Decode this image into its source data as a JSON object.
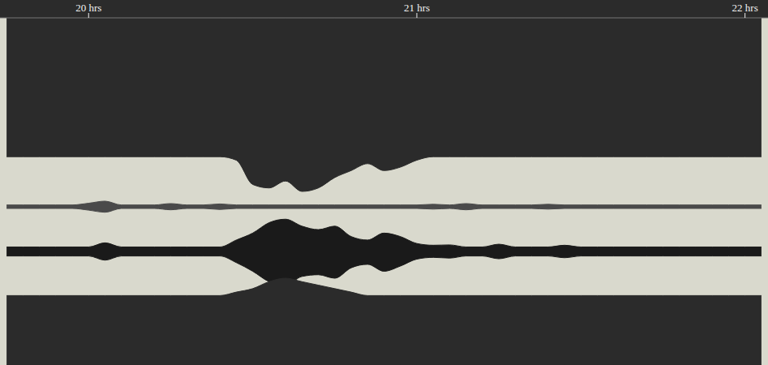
{
  "chart_data": {
    "type": "area",
    "tick_labels": "x",
    "grid": false,
    "xlim": [
      19.73,
      22.07
    ],
    "xticks": [
      {
        "value": 20,
        "label": "20 hrs"
      },
      {
        "value": 21,
        "label": "21 hrs"
      },
      {
        "value": 22,
        "label": "22 hrs"
      }
    ],
    "ylim": [
      0,
      100
    ],
    "x": [
      19.75,
      19.8,
      19.85,
      19.9,
      19.95,
      20,
      20.05,
      20.1,
      20.15,
      20.2,
      20.25,
      20.3,
      20.35,
      20.4,
      20.45,
      20.5,
      20.55,
      20.6,
      20.65,
      20.7,
      20.75,
      20.8,
      20.85,
      20.9,
      20.95,
      21,
      21.05,
      21.1,
      21.15,
      21.2,
      21.25,
      21.3,
      21.35,
      21.4,
      21.45,
      21.5,
      21.55,
      21.6,
      21.65,
      21.7,
      21.75,
      21.8,
      21.85,
      21.9,
      21.95,
      22,
      22.05
    ],
    "series": [
      {
        "color": "#2b2b2b",
        "upper": [
          100,
          100,
          100,
          100,
          100,
          100,
          100,
          100,
          100,
          100,
          100,
          100,
          100,
          100,
          100,
          100,
          100,
          100,
          100,
          100,
          100,
          100,
          100,
          100,
          100,
          100,
          100,
          100,
          100,
          100,
          100,
          100,
          100,
          100,
          100,
          100,
          100,
          100,
          100,
          100,
          100,
          100,
          100,
          100,
          100,
          100,
          100
        ],
        "lower": [
          60,
          60,
          60,
          60,
          60,
          60,
          60,
          60,
          60,
          60,
          60,
          60,
          60,
          60,
          59,
          52,
          51,
          53,
          50,
          51,
          54,
          56,
          58,
          56,
          57,
          59,
          60,
          60,
          60,
          60,
          60,
          60,
          60,
          60,
          60,
          60,
          60,
          60,
          60,
          60,
          60,
          60,
          60,
          60,
          60,
          60,
          60
        ]
      },
      {
        "color": "#4a4a4a",
        "upper": [
          46.1,
          46.1,
          46.1,
          46.1,
          46.1,
          46.6,
          47.2,
          46.1,
          46.1,
          46.1,
          46.5,
          46.1,
          46.1,
          46.4,
          46.1,
          46.1,
          46.1,
          46.1,
          46.1,
          46.1,
          46.1,
          46.1,
          46.1,
          46.1,
          46.1,
          46.1,
          46.3,
          46.1,
          46.5,
          46.1,
          46.1,
          46.1,
          46.1,
          46.3,
          46.1,
          46.1,
          46.1,
          46.1,
          46.1,
          46.1,
          46.1,
          46.1,
          46.1,
          46.1,
          46.1,
          46.1,
          46.1
        ],
        "lower": [
          45.1,
          45.1,
          45.1,
          45.1,
          45.1,
          44.6,
          44,
          45.1,
          45.1,
          45.1,
          44.7,
          45.1,
          45.1,
          44.8,
          45.1,
          45.1,
          45.1,
          45.1,
          45.1,
          45.1,
          45.1,
          45.1,
          45.1,
          45.1,
          45.1,
          45.1,
          44.9,
          45.1,
          44.7,
          45.1,
          45.1,
          45.1,
          45.1,
          44.9,
          45.1,
          45.1,
          45.1,
          45.1,
          45.1,
          45.1,
          45.1,
          45.1,
          45.1,
          45.1,
          45.1,
          45.1,
          45.1
        ]
      },
      {
        "color": "#1a1a1a",
        "upper": [
          34,
          34,
          34,
          34,
          34,
          34,
          35.2,
          34,
          34,
          34,
          34,
          34,
          34,
          34,
          36,
          38,
          41,
          42,
          40,
          39,
          40,
          37,
          36,
          38,
          37,
          35,
          34.5,
          34.6,
          34,
          34,
          34.8,
          34,
          34,
          34,
          34.5,
          34,
          34,
          34,
          34,
          34,
          34,
          34,
          34,
          34,
          34,
          34,
          34
        ],
        "lower": [
          31.4,
          31.4,
          31.4,
          31.4,
          31.4,
          31.4,
          30.2,
          31.4,
          31.4,
          31.4,
          31.4,
          31.4,
          31.4,
          31.4,
          29.5,
          27,
          24,
          23,
          25.5,
          26,
          25,
          28,
          29,
          27,
          28.5,
          30.5,
          31,
          30.8,
          31.4,
          31.4,
          30.6,
          31.4,
          31.4,
          31.4,
          30.9,
          31.4,
          31.4,
          31.4,
          31.4,
          31.4,
          31.4,
          31.4,
          31.4,
          31.4,
          31.4,
          31.4,
          31.4
        ]
      },
      {
        "color": "#2b2b2b",
        "upper": [
          20,
          20,
          20,
          20,
          20,
          20,
          20,
          20,
          20,
          20,
          20,
          20,
          20,
          20,
          21,
          22,
          24,
          25,
          24,
          23,
          22,
          21,
          20,
          20,
          20,
          20,
          20,
          20,
          20,
          20,
          20,
          20,
          20,
          20,
          20,
          20,
          20,
          20,
          20,
          20,
          20,
          20,
          20,
          20,
          20,
          20,
          20
        ],
        "lower": [
          0,
          0,
          0,
          0,
          0,
          0,
          0,
          0,
          0,
          0,
          0,
          0,
          0,
          0,
          0,
          0,
          0,
          0,
          0,
          0,
          0,
          0,
          0,
          0,
          0,
          0,
          0,
          0,
          0,
          0,
          0,
          0,
          0,
          0,
          0,
          0,
          0,
          0,
          0,
          0,
          0,
          0,
          0,
          0,
          0,
          0,
          0
        ]
      }
    ]
  }
}
